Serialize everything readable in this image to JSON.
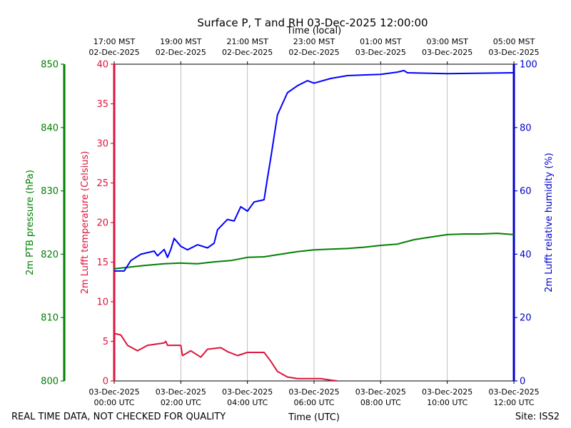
{
  "chart_data": {
    "type": "line",
    "title": "Surface P, T and RH 03-Dec-2025 12:00:00",
    "xlabel": "Time (UTC)",
    "xlabel_top": "Time (local)",
    "footer_left": "REAL TIME DATA, NOT CHECKED FOR QUALITY",
    "footer_right": "Site: ISS2",
    "xlim": [
      0,
      12
    ],
    "xticks": [
      {
        "value": 0,
        "label": [
          "03-Dec-2025",
          "00:00 UTC"
        ]
      },
      {
        "value": 2,
        "label": [
          "03-Dec-2025",
          "02:00 UTC"
        ]
      },
      {
        "value": 4,
        "label": [
          "03-Dec-2025",
          "04:00 UTC"
        ]
      },
      {
        "value": 6,
        "label": [
          "03-Dec-2025",
          "06:00 UTC"
        ]
      },
      {
        "value": 8,
        "label": [
          "03-Dec-2025",
          "08:00 UTC"
        ]
      },
      {
        "value": 10,
        "label": [
          "03-Dec-2025",
          "10:00 UTC"
        ]
      },
      {
        "value": 12,
        "label": [
          "03-Dec-2025",
          "12:00 UTC"
        ]
      }
    ],
    "xticks_top": [
      {
        "value": 0,
        "label": [
          "17:00 MST",
          "02-Dec-2025"
        ]
      },
      {
        "value": 2,
        "label": [
          "19:00 MST",
          "02-Dec-2025"
        ]
      },
      {
        "value": 4,
        "label": [
          "21:00 MST",
          "02-Dec-2025"
        ]
      },
      {
        "value": 6,
        "label": [
          "23:00 MST",
          "02-Dec-2025"
        ]
      },
      {
        "value": 8,
        "label": [
          "01:00 MST",
          "03-Dec-2025"
        ]
      },
      {
        "value": 10,
        "label": [
          "03:00 MST",
          "03-Dec-2025"
        ]
      },
      {
        "value": 12,
        "label": [
          "05:00 MST",
          "03-Dec-2025"
        ]
      }
    ],
    "grid": true,
    "ylabel": "2m Lufft temperature (Celsius)",
    "ylim": [
      0,
      40
    ],
    "yticks": [
      0,
      5,
      10,
      15,
      20,
      25,
      30,
      35,
      40
    ],
    "ycolor": "#dc143c",
    "y2label": "2m Lufft relative humidity (%)",
    "y2lim": [
      0,
      100
    ],
    "y2ticks": [
      0,
      20,
      40,
      60,
      80,
      100
    ],
    "y2color": "#0000cd",
    "y3label": "2m PTB pressure (hPa)",
    "y3lim": [
      800,
      850
    ],
    "y3ticks": [
      800,
      810,
      820,
      830,
      840,
      850
    ],
    "y3color": "#008000",
    "series": [
      {
        "axis": "y3",
        "color": "#008000",
        "x": [
          0,
          0.5,
          0.86,
          1.5,
          2,
          2.5,
          3,
          3.5,
          4,
          4.5,
          5,
          5.5,
          6,
          6.5,
          7,
          7.5,
          8,
          8.5,
          9,
          9.5,
          10,
          10.5,
          11,
          11.5,
          12
        ],
        "values": [
          817.7,
          818.0,
          818.2,
          818.5,
          818.6,
          818.5,
          818.8,
          819.0,
          819.5,
          819.6,
          820.0,
          820.4,
          820.7,
          820.8,
          820.9,
          821.1,
          821.4,
          821.6,
          822.3,
          822.7,
          823.1,
          823.2,
          823.2,
          823.3,
          823.1
        ]
      },
      {
        "axis": "y",
        "color": "#dc143c",
        "x": [
          0,
          0.2,
          0.4,
          0.7,
          1.0,
          1.5,
          1.55,
          1.6,
          2.0,
          2.05,
          2.3,
          2.6,
          2.8,
          3.2,
          3.4,
          3.7,
          4.0,
          4.5,
          4.7,
          4.9,
          5.2,
          5.5,
          6.2,
          6.5,
          6.7
        ],
        "values": [
          6.0,
          5.8,
          4.5,
          3.8,
          4.5,
          4.8,
          5.0,
          4.5,
          4.5,
          3.2,
          3.8,
          3.0,
          4.0,
          4.2,
          3.7,
          3.2,
          3.6,
          3.6,
          2.5,
          1.2,
          0.5,
          0.3,
          0.3,
          0.1,
          0
        ]
      },
      {
        "axis": "y2",
        "color": "#0000ff",
        "x": [
          0,
          0.3,
          0.5,
          0.8,
          1.2,
          1.3,
          1.5,
          1.6,
          1.7,
          1.8,
          2.0,
          2.2,
          2.5,
          2.8,
          3.0,
          3.1,
          3.4,
          3.6,
          3.8,
          4.0,
          4.2,
          4.5,
          4.6,
          4.7,
          4.9,
          5.2,
          5.5,
          5.8,
          6.0,
          6.5,
          7,
          8,
          8.5,
          8.7,
          8.8,
          10,
          12
        ],
        "values": [
          34.7,
          34.7,
          38,
          40,
          41,
          39.5,
          41.5,
          39,
          41.5,
          45,
          42.5,
          41.4,
          43,
          42,
          43.5,
          47.7,
          51,
          50.5,
          55,
          53.6,
          56.5,
          57.2,
          64,
          70.3,
          84,
          91,
          93.2,
          94.8,
          94,
          95.5,
          96.4,
          96.8,
          97.5,
          98,
          97.3,
          97,
          97.3
        ]
      }
    ]
  }
}
